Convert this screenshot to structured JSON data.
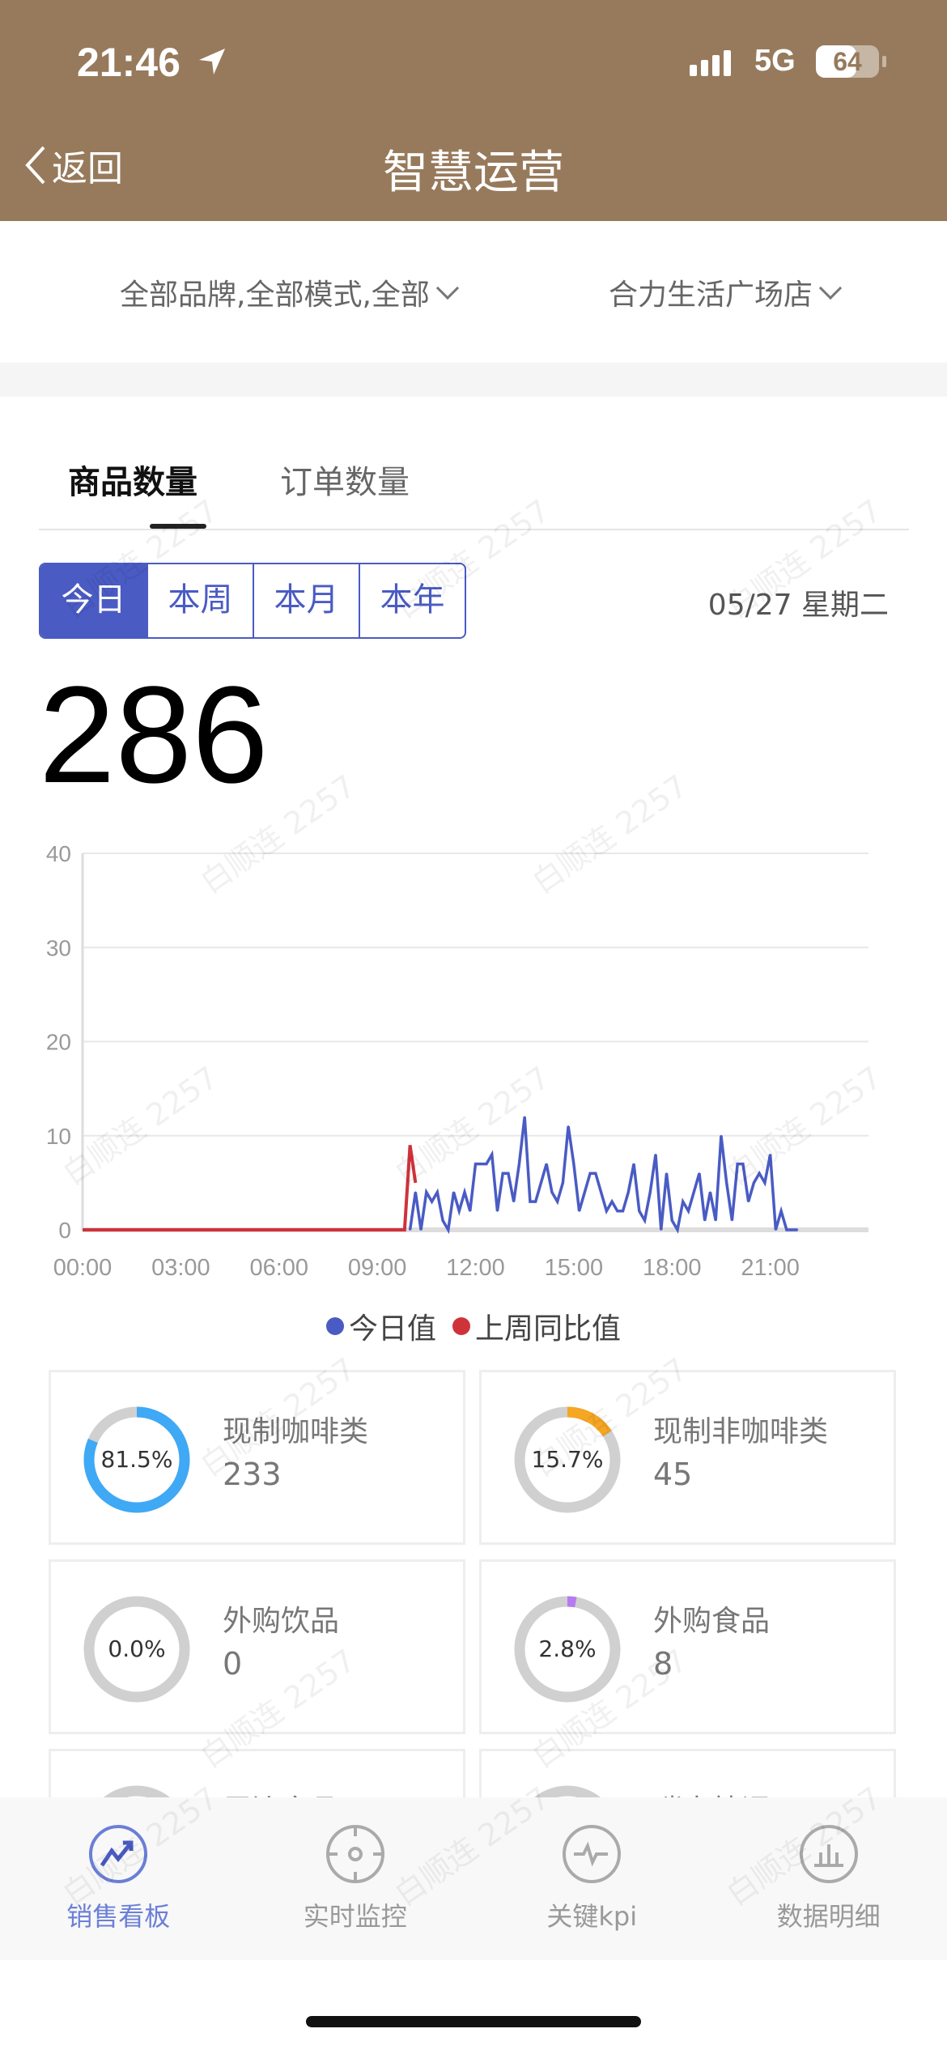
{
  "status_bar": {
    "time": "21:46",
    "network": "5G",
    "battery": "64",
    "battery_level": 64
  },
  "header": {
    "back_label": "返回",
    "title": "智慧运营"
  },
  "filters": {
    "brand_mode": "全部品牌,全部模式,全部",
    "store": "合力生活广场店"
  },
  "tabs": [
    {
      "label": "商品数量",
      "active": true
    },
    {
      "label": "订单数量",
      "active": false
    }
  ],
  "periods": [
    {
      "label": "今日",
      "active": true
    },
    {
      "label": "本周"
    },
    {
      "label": "本月"
    },
    {
      "label": "本年"
    }
  ],
  "date": "05/27 星期二",
  "total": "286",
  "watermark": "白顺连 2257",
  "colors": {
    "header": "#977a5c",
    "accent": "#4a5bc4",
    "today_series": "#4a5bc4",
    "last_week_series": "#d0323a",
    "coffee": "#3fa9f5",
    "non_coffee": "#f5a623",
    "food": "#b57bf0",
    "ring_track": "#d0d0d0"
  },
  "chart_data": {
    "type": "line",
    "x_ticks": [
      "00:00",
      "03:00",
      "06:00",
      "09:00",
      "12:00",
      "15:00",
      "18:00",
      "21:00"
    ],
    "ylim": [
      0,
      40
    ],
    "y_ticks": [
      0,
      10,
      20,
      30,
      40
    ],
    "grid": true,
    "legend_position": "bottom",
    "series": [
      {
        "name": "今日值",
        "color": "#4a5bc4",
        "start": "10:00",
        "interval_minutes": 10,
        "values": [
          0,
          4,
          0,
          4,
          3,
          4,
          1,
          0,
          4,
          2,
          4,
          2,
          7,
          7,
          7,
          8,
          2,
          6,
          6,
          3,
          7,
          12,
          3,
          3,
          5,
          7,
          4,
          3,
          5,
          11,
          7,
          2,
          4,
          6,
          6,
          4,
          2,
          3,
          2,
          2,
          4,
          7,
          2,
          1,
          4,
          8,
          0,
          6,
          1,
          0,
          3,
          2,
          4,
          6,
          1,
          4,
          1,
          10,
          5,
          1,
          7,
          7,
          3,
          5,
          6,
          5,
          8,
          0,
          2,
          0,
          0,
          0
        ]
      },
      {
        "name": "上周同比值",
        "color": "#d0323a",
        "points": [
          [
            "00:00",
            0
          ],
          [
            "09:50",
            0
          ],
          [
            "10:00",
            9
          ],
          [
            "10:10",
            5
          ]
        ]
      }
    ]
  },
  "categories": [
    {
      "name": "现制咖啡类",
      "value": "233",
      "percent": "81.5%",
      "ratio": 0.815,
      "color": "#3fa9f5"
    },
    {
      "name": "现制非咖啡类",
      "value": "45",
      "percent": "15.7%",
      "ratio": 0.157,
      "color": "#f5a623"
    },
    {
      "name": "外购饮品",
      "value": "0",
      "percent": "0.0%",
      "ratio": 0,
      "color": "#3fa9f5"
    },
    {
      "name": "外购食品",
      "value": "8",
      "percent": "2.8%",
      "ratio": 0.028,
      "color": "#b57bf0"
    },
    {
      "name": "周边产品",
      "value": "",
      "percent": "",
      "ratio": 0,
      "color": "#3fa9f5"
    },
    {
      "name": "瑞幸特调",
      "value": "",
      "percent": "",
      "ratio": 0,
      "color": "#3fa9f5"
    }
  ],
  "tabbar": [
    {
      "label": "销售看板",
      "icon": "trend-up-icon",
      "active": true
    },
    {
      "label": "实时监控",
      "icon": "crosshair-icon"
    },
    {
      "label": "关键kpi",
      "icon": "pulse-icon"
    },
    {
      "label": "数据明细",
      "icon": "bar-chart-icon"
    }
  ]
}
